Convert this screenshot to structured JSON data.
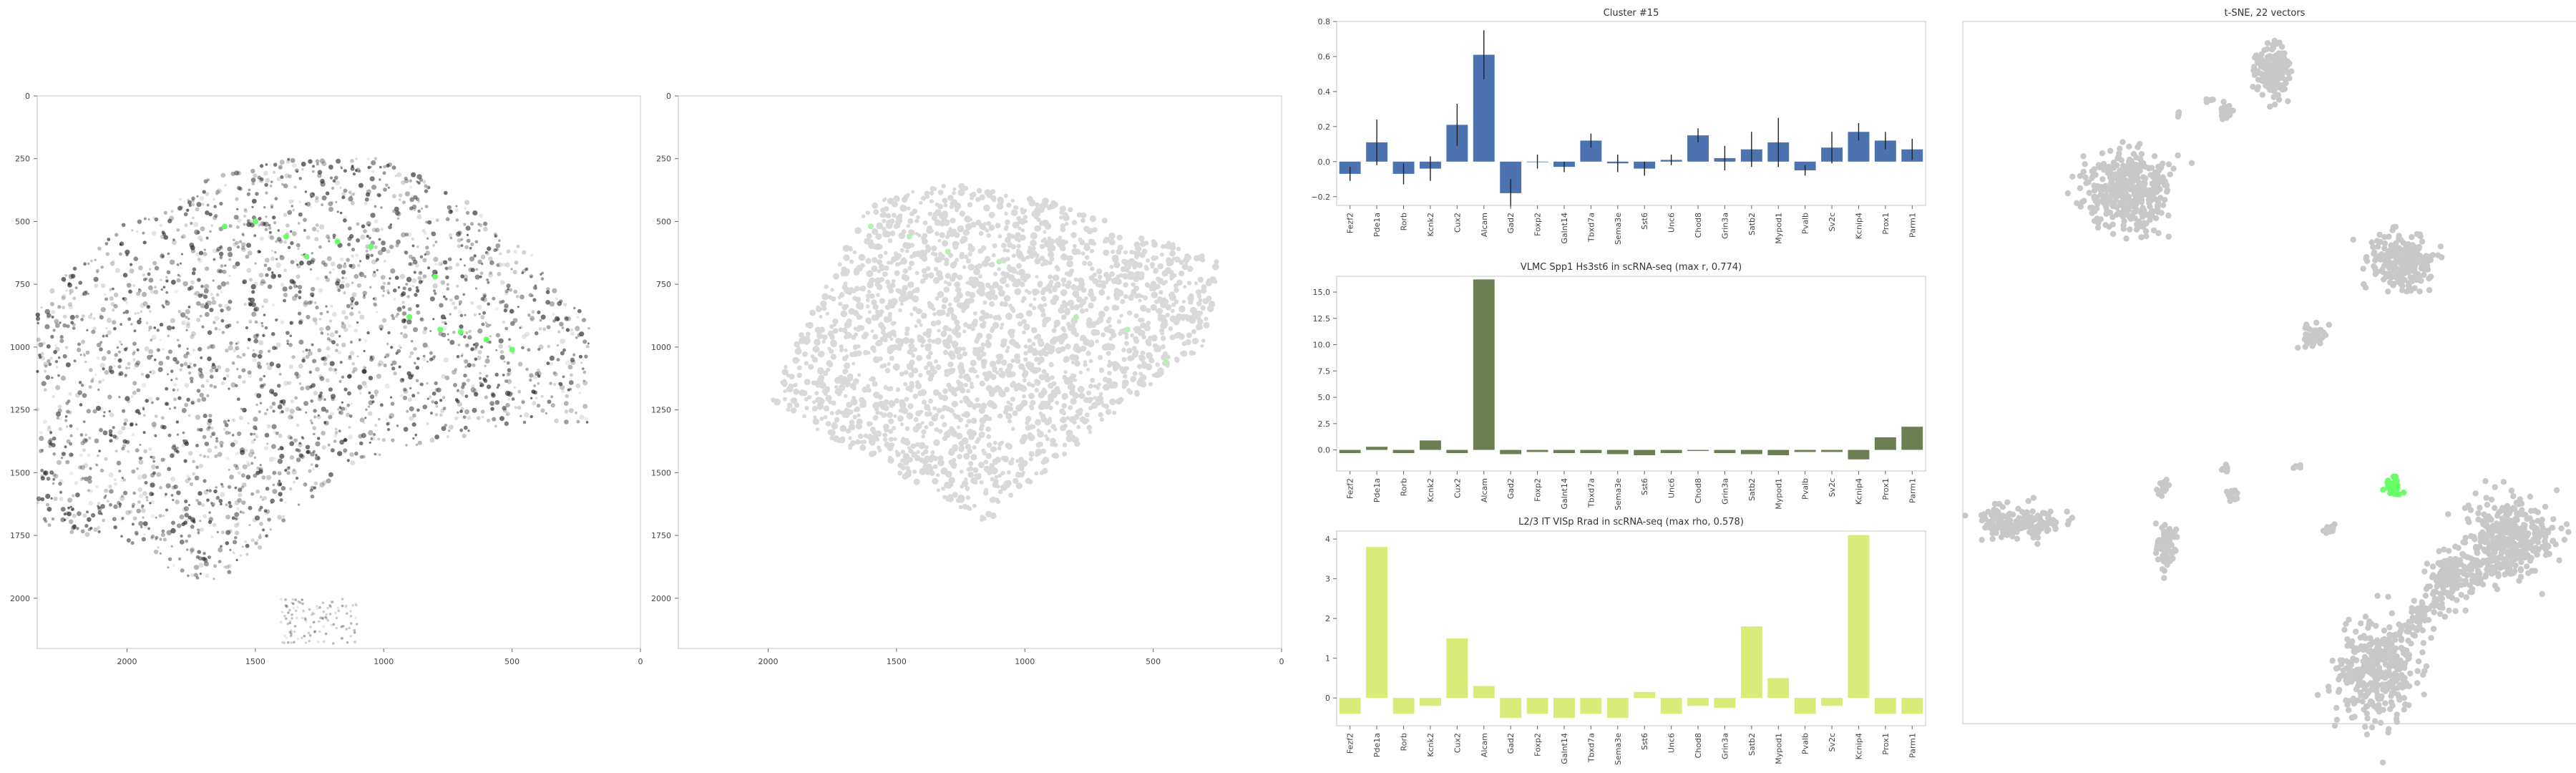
{
  "panels": {
    "image1": {
      "xticks": [
        2000,
        1500,
        1000,
        500,
        0
      ],
      "yticks": [
        0,
        250,
        500,
        750,
        1000,
        1250,
        1500,
        1750,
        2000
      ],
      "colors": {
        "spot": "#222222",
        "highlight": "#66ff66"
      }
    },
    "image2": {
      "xticks": [
        2000,
        1500,
        1000,
        500,
        0
      ],
      "yticks": [
        0,
        250,
        500,
        750,
        1000,
        1250,
        1500,
        1750,
        2000
      ],
      "colors": {
        "cell": "#d9d9d9",
        "highlight": "#b6f0b0"
      }
    },
    "tsne": {
      "title": "t-SNE, 22 vectors",
      "colors": {
        "point": "#c8c8c8",
        "highlight": "#66ff66"
      }
    }
  },
  "chart_data": [
    {
      "type": "bar",
      "title": "Cluster #15",
      "categories": [
        "Fezf2",
        "Pde1a",
        "Rorb",
        "Kcnk2",
        "Cux2",
        "Alcam",
        "Gad2",
        "Foxp2",
        "Galnt14",
        "Tbxd7a",
        "Sema3e",
        "Sst6",
        "Unc6",
        "Chod8",
        "Grin3a",
        "Satb2",
        "Mypod1",
        "Pvalb",
        "Sv2c",
        "Kcnip4",
        "Prox1",
        "Parm1"
      ],
      "values": [
        -0.07,
        0.11,
        -0.07,
        -0.04,
        0.21,
        0.61,
        -0.18,
        0.0,
        -0.03,
        0.12,
        -0.01,
        -0.04,
        0.01,
        0.15,
        0.02,
        0.07,
        0.11,
        -0.05,
        0.08,
        0.17,
        0.12,
        0.07
      ],
      "errors": [
        0.04,
        0.13,
        0.06,
        0.07,
        0.12,
        0.14,
        0.08,
        0.04,
        0.03,
        0.04,
        0.05,
        0.04,
        0.03,
        0.04,
        0.07,
        0.1,
        0.14,
        0.03,
        0.09,
        0.05,
        0.05,
        0.06
      ],
      "ylim": [
        -0.25,
        0.8
      ],
      "yticks": [
        -0.2,
        0.0,
        0.2,
        0.4,
        0.6,
        0.8
      ],
      "color": "#4c72b0"
    },
    {
      "type": "bar",
      "title": "VLMC Spp1 Hs3st6 in scRNA-seq (max r, 0.774)",
      "categories": [
        "Fezf2",
        "Pde1a",
        "Rorb",
        "Kcnk2",
        "Cux2",
        "Alcam",
        "Gad2",
        "Foxp2",
        "Galnt14",
        "Tbxd7a",
        "Sema3e",
        "Sst6",
        "Unc6",
        "Chod8",
        "Grin3a",
        "Satb2",
        "Mypod1",
        "Pvalb",
        "Sv2c",
        "Kcnip4",
        "Prox1",
        "Parm1"
      ],
      "values": [
        -0.3,
        0.3,
        -0.3,
        0.9,
        -0.3,
        16.2,
        -0.4,
        -0.2,
        -0.3,
        -0.3,
        -0.4,
        -0.5,
        -0.3,
        -0.1,
        -0.3,
        -0.4,
        -0.5,
        -0.2,
        -0.2,
        -0.9,
        1.2,
        2.2
      ],
      "ylim": [
        -2,
        16.5
      ],
      "yticks": [
        0.0,
        2.5,
        5.0,
        7.5,
        10.0,
        12.5,
        15.0
      ],
      "color": "#6b7f52"
    },
    {
      "type": "bar",
      "title": "L2/3 IT VISp Rrad in scRNA-seq (max rho, 0.578)",
      "categories": [
        "Fezf2",
        "Pde1a",
        "Rorb",
        "Kcnk2",
        "Cux2",
        "Alcam",
        "Gad2",
        "Foxp2",
        "Galnt14",
        "Tbxd7a",
        "Sema3e",
        "Sst6",
        "Unc6",
        "Chod8",
        "Grin3a",
        "Satb2",
        "Mypod1",
        "Pvalb",
        "Sv2c",
        "Kcnip4",
        "Prox1",
        "Parm1"
      ],
      "values": [
        -0.4,
        3.8,
        -0.4,
        -0.2,
        1.5,
        0.3,
        -0.5,
        -0.4,
        -0.5,
        -0.4,
        -0.5,
        0.15,
        -0.4,
        -0.2,
        -0.25,
        1.8,
        0.5,
        -0.4,
        -0.2,
        4.1,
        -0.4,
        -0.4
      ],
      "ylim": [
        -0.7,
        4.2
      ],
      "yticks": [
        0,
        1,
        2,
        3,
        4
      ],
      "color": "#d9eb78"
    }
  ]
}
